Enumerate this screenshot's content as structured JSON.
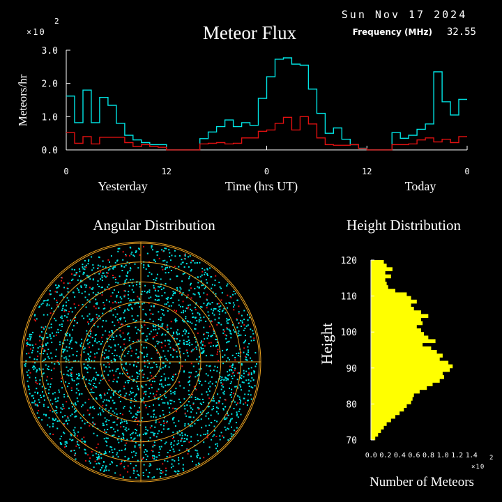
{
  "header": {
    "date": "Sun Nov 17 2024",
    "title": "Meteor Flux",
    "frequency_label": "Frequency (MHz)",
    "frequency_value": "32.55",
    "multiplier": "×10",
    "multiplier_exp": "2"
  },
  "colors": {
    "background": "#000000",
    "axes": "#ffffff",
    "cyan": "#00e5e5",
    "red": "#e01010",
    "yellow": "#ffff00",
    "grid": "#e8a020"
  },
  "chart_data": [
    {
      "type": "line",
      "title": "Meteor Flux",
      "ylabel": "Meteors/hr",
      "y_scale_note": "×10^2",
      "xlabel": "Time (hrs UT)",
      "x_day_labels": [
        "Yesterday",
        "Today"
      ],
      "x_tick_labels": [
        "0",
        "12",
        "0",
        "12",
        "0"
      ],
      "x_ticks_hours": [
        0,
        12,
        24,
        36,
        48
      ],
      "y_tick_labels": [
        "0.0",
        "1.0",
        "2.0",
        "3.0"
      ],
      "ylim": [
        0,
        3.0
      ],
      "xlim": [
        0,
        48
      ],
      "step": true,
      "series": [
        {
          "color": "cyan",
          "x": [
            0,
            1,
            2,
            3,
            4,
            5,
            6,
            7,
            8,
            9,
            10,
            11,
            12,
            13,
            14,
            15,
            16,
            17,
            18,
            19,
            20,
            21,
            22,
            23,
            24,
            25,
            26,
            27,
            28,
            29,
            30,
            31,
            32,
            33,
            34,
            35,
            36,
            37,
            38,
            39,
            40,
            41,
            42,
            43,
            44,
            45,
            46,
            47
          ],
          "values": [
            1.62,
            0.82,
            1.8,
            0.82,
            1.58,
            1.34,
            0.8,
            0.44,
            0.3,
            0.22,
            0.16,
            0.16,
            0.0,
            0.0,
            0.0,
            0.0,
            0.34,
            0.54,
            0.7,
            0.9,
            0.7,
            0.82,
            0.74,
            1.55,
            2.2,
            2.73,
            2.77,
            2.58,
            2.55,
            1.83,
            1.1,
            0.5,
            0.66,
            0.32,
            0.16,
            0.05,
            0.0,
            0.0,
            0.0,
            0.52,
            0.35,
            0.44,
            0.62,
            0.78,
            2.35,
            1.45,
            1.05,
            1.52
          ]
        },
        {
          "color": "red",
          "values": [
            0.52,
            0.2,
            0.4,
            0.18,
            0.38,
            0.38,
            0.38,
            0.22,
            0.1,
            0.16,
            0.1,
            0.08,
            0.0,
            0.0,
            0.0,
            0.0,
            0.18,
            0.2,
            0.22,
            0.18,
            0.2,
            0.36,
            0.36,
            0.56,
            0.6,
            0.8,
            0.98,
            0.6,
            1.0,
            0.78,
            0.36,
            0.16,
            0.14,
            0.14,
            0.16,
            0.04,
            0.0,
            0.0,
            0.0,
            0.16,
            0.16,
            0.18,
            0.3,
            0.36,
            0.24,
            0.32,
            0.22,
            0.4
          ]
        }
      ]
    },
    {
      "type": "scatter",
      "title": "Angular Distribution",
      "projection": "polar",
      "rings": 6
    },
    {
      "type": "bar",
      "orientation": "horizontal",
      "title": "Height Distribution",
      "ylabel": "Height",
      "xlabel": "Number of Meteors",
      "x_scale_note": "×10^2",
      "x_tick_labels": [
        "0.0",
        "0.2",
        "0.4",
        "0.6",
        "0.8",
        "1.0",
        "1.2",
        "1.4"
      ],
      "xlim": [
        0,
        1.4
      ],
      "y_tick_labels": [
        "70",
        "80",
        "90",
        "100",
        "110",
        "120"
      ],
      "ylim": [
        70,
        120
      ],
      "heights": [
        70,
        71,
        72,
        73,
        74,
        75,
        76,
        77,
        78,
        79,
        80,
        81,
        82,
        83,
        84,
        85,
        86,
        87,
        88,
        89,
        90,
        91,
        92,
        93,
        94,
        95,
        96,
        97,
        98,
        99,
        100,
        101,
        102,
        103,
        104,
        105,
        106,
        107,
        108,
        109,
        110,
        111,
        112,
        113,
        114,
        115,
        116,
        117,
        118,
        119
      ],
      "values": [
        0.06,
        0.1,
        0.14,
        0.18,
        0.22,
        0.28,
        0.34,
        0.4,
        0.46,
        0.5,
        0.56,
        0.58,
        0.6,
        0.68,
        0.78,
        0.86,
        0.96,
        1.02,
        1.0,
        1.1,
        1.14,
        1.08,
        0.96,
        1.0,
        0.92,
        0.84,
        0.72,
        0.9,
        0.8,
        0.74,
        0.7,
        0.64,
        0.72,
        0.7,
        0.8,
        0.7,
        0.6,
        0.56,
        0.64,
        0.56,
        0.5,
        0.34,
        0.24,
        0.22,
        0.2,
        0.28,
        0.2,
        0.3,
        0.22,
        0.18
      ]
    }
  ],
  "labels": {
    "angular_title": "Angular Distribution",
    "height_title": "Height Distribution",
    "height_axis": "Height",
    "number_axis": "Number of Meteors",
    "height_multiplier": "×10",
    "height_multiplier_exp": "2"
  }
}
